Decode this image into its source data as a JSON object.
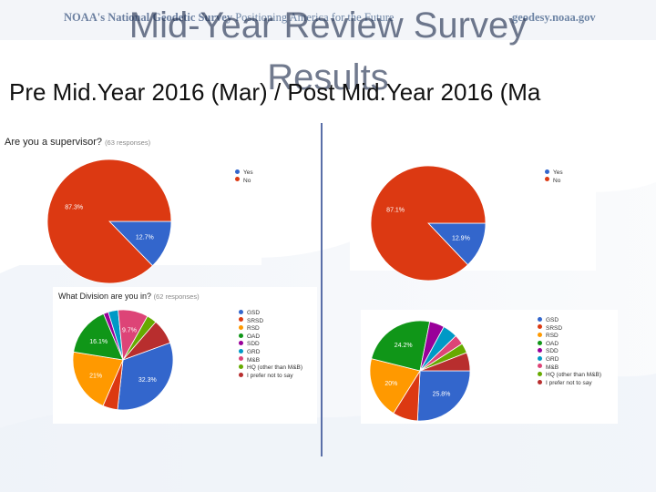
{
  "header": {
    "org_left": "NOAA's National Geodetic Survey",
    "tagline": "Positioning America for the Future",
    "url": "geodesy.noaa.gov"
  },
  "title": {
    "line1": "Mid-Year Review Survey",
    "line2": "Results"
  },
  "subtitle": "Pre Mid.Year  2016 (Mar) / Post Mid.Year 2016 (Ma",
  "questions": {
    "q1": {
      "text": "Are you a supervisor?",
      "responses": "(63 responses)"
    },
    "q2": {
      "text": "What Division are you in?",
      "responses": "(62 responses)"
    }
  },
  "colors": {
    "blue": "#3366cc",
    "red": "#dc3912",
    "orange": "#ff9900",
    "green": "#109618",
    "purple": "#990099",
    "teal": "#0099c6",
    "pink": "#dd4477",
    "lime": "#66aa00",
    "darkred": "#b82e2e",
    "divider": "#5a6fa8"
  },
  "chart_data": [
    {
      "type": "pie",
      "id": "supervisor-pre",
      "categories": [
        "Yes",
        "No"
      ],
      "values": [
        12.7,
        87.3
      ],
      "labels": [
        "12.7%",
        "87.3%"
      ],
      "colors": [
        "#3366cc",
        "#dc3912"
      ],
      "legend": "right"
    },
    {
      "type": "pie",
      "id": "supervisor-post",
      "categories": [
        "Yes",
        "No"
      ],
      "values": [
        12.9,
        87.1
      ],
      "labels": [
        "12.9%",
        "87.1%"
      ],
      "colors": [
        "#3366cc",
        "#dc3912"
      ],
      "legend": "right"
    },
    {
      "type": "pie",
      "id": "division-pre",
      "categories": [
        "GSD",
        "SRSD",
        "RSD",
        "OAD",
        "SDD",
        "GRD",
        "M&B",
        "HQ (other than M&B)",
        "I prefer not to say"
      ],
      "values": [
        32.3,
        4.8,
        21.0,
        16.1,
        1.6,
        3.2,
        9.7,
        3.2,
        8.1
      ],
      "labels": [
        "32.3%",
        "",
        "21%",
        "16.1%",
        "",
        "",
        "9.7%",
        "",
        ""
      ],
      "colors": [
        "#3366cc",
        "#dc3912",
        "#ff9900",
        "#109618",
        "#990099",
        "#0099c6",
        "#dd4477",
        "#66aa00",
        "#b82e2e"
      ],
      "legend": "right"
    },
    {
      "type": "pie",
      "id": "division-post",
      "categories": [
        "GSD",
        "SRSD",
        "RSD",
        "OAD",
        "SDD",
        "GRD",
        "M&B",
        "HQ (other than M&B)",
        "I prefer not to say"
      ],
      "values": [
        25.8,
        8.1,
        20.0,
        24.2,
        4.8,
        4.8,
        3.2,
        3.2,
        5.9
      ],
      "labels": [
        "25.8%",
        "",
        "20%",
        "24.2%",
        "",
        "",
        "",
        "",
        ""
      ],
      "colors": [
        "#3366cc",
        "#dc3912",
        "#ff9900",
        "#109618",
        "#990099",
        "#0099c6",
        "#dd4477",
        "#66aa00",
        "#b82e2e"
      ],
      "legend": "right"
    }
  ]
}
